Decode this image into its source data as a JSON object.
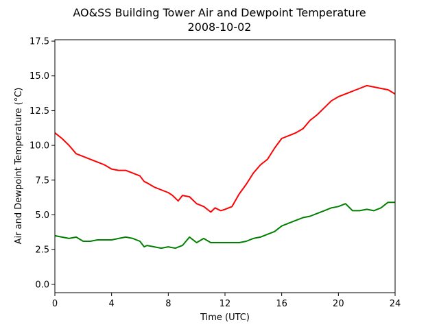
{
  "chart_data": {
    "type": "line",
    "title": "AO&SS Building Tower Air and Dewpoint Temperature",
    "subtitle": "2008-10-02",
    "xlabel": "Time (UTC)",
    "ylabel": "Air and Dewpoint Temperature (°C)",
    "xlim": [
      0,
      24
    ],
    "ylim": [
      -0.6,
      17.6
    ],
    "xticks": [
      0,
      4,
      8,
      12,
      16,
      20,
      24
    ],
    "xtick_labels": [
      "0",
      "4",
      "8",
      "12",
      "16",
      "20",
      "24"
    ],
    "yticks": [
      0.0,
      2.5,
      5.0,
      7.5,
      10.0,
      12.5,
      15.0,
      17.5
    ],
    "ytick_labels": [
      "0.0",
      "2.5",
      "5.0",
      "7.5",
      "10.0",
      "12.5",
      "15.0",
      "17.5"
    ],
    "grid": false,
    "series": [
      {
        "color": "#ff0000",
        "x": [
          0,
          0.5,
          1,
          1.5,
          2,
          2.5,
          3,
          3.5,
          4,
          4.5,
          5,
          5.5,
          6,
          6.3,
          6.5,
          7,
          7.5,
          8,
          8.3,
          8.7,
          9,
          9.5,
          10,
          10.5,
          11,
          11.3,
          11.7,
          12,
          12.5,
          13,
          13.5,
          14,
          14.5,
          15,
          15.5,
          16,
          16.5,
          17,
          17.5,
          18,
          18.5,
          19,
          19.5,
          20,
          20.5,
          21,
          21.5,
          22,
          22.5,
          23,
          23.5,
          24
        ],
        "y": [
          10.9,
          10.5,
          10.0,
          9.4,
          9.2,
          9.0,
          8.8,
          8.6,
          8.3,
          8.2,
          8.2,
          8.0,
          7.8,
          7.4,
          7.3,
          7.0,
          6.8,
          6.6,
          6.4,
          6.0,
          6.4,
          6.3,
          5.8,
          5.6,
          5.2,
          5.5,
          5.3,
          5.4,
          5.6,
          6.5,
          7.2,
          8.0,
          8.6,
          9.0,
          9.8,
          10.5,
          10.7,
          10.9,
          11.2,
          11.8,
          12.2,
          12.7,
          13.2,
          13.5,
          13.7,
          13.9,
          14.1,
          14.3,
          14.2,
          14.1,
          14.0,
          13.7
        ]
      },
      {
        "color": "#008000",
        "x": [
          0,
          0.5,
          1,
          1.5,
          2,
          2.5,
          3,
          3.5,
          4,
          4.5,
          5,
          5.5,
          6,
          6.3,
          6.5,
          7,
          7.5,
          8,
          8.5,
          9,
          9.5,
          10,
          10.5,
          11,
          11.5,
          12,
          12.5,
          13,
          13.5,
          14,
          14.5,
          15,
          15.5,
          16,
          16.5,
          17,
          17.5,
          18,
          18.5,
          19,
          19.5,
          20,
          20.5,
          21,
          21.5,
          22,
          22.5,
          23,
          23.5,
          24
        ],
        "y": [
          3.5,
          3.4,
          3.3,
          3.4,
          3.1,
          3.1,
          3.2,
          3.2,
          3.2,
          3.3,
          3.4,
          3.3,
          3.1,
          2.7,
          2.8,
          2.7,
          2.6,
          2.7,
          2.6,
          2.8,
          3.4,
          3.0,
          3.3,
          3.0,
          3.0,
          3.0,
          3.0,
          3.0,
          3.1,
          3.3,
          3.4,
          3.6,
          3.8,
          4.2,
          4.4,
          4.6,
          4.8,
          4.9,
          5.1,
          5.3,
          5.5,
          5.6,
          5.8,
          5.3,
          5.3,
          5.4,
          5.3,
          5.5,
          5.9,
          5.9
        ]
      }
    ]
  }
}
